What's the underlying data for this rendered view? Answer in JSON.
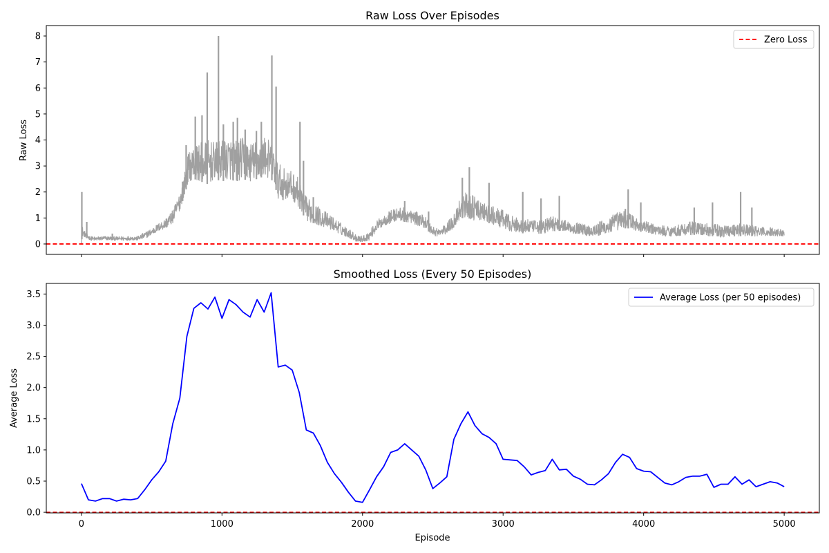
{
  "chart_data": [
    {
      "type": "line",
      "title": "Raw Loss Over Episodes",
      "xlabel": "",
      "ylabel": "Raw Loss",
      "xlim": [
        -250,
        5250
      ],
      "ylim": [
        -0.4,
        8.4
      ],
      "xticks": [
        0,
        1000,
        2000,
        3000,
        4000,
        5000
      ],
      "xtick_labels_visible": false,
      "yticks": [
        0,
        1,
        2,
        3,
        4,
        5,
        6,
        7,
        8
      ],
      "legend": {
        "position": "top-right",
        "entries": [
          {
            "label": "Zero Loss",
            "color": "#ff0000",
            "style": "dashed"
          }
        ]
      },
      "reference_lines": [
        {
          "label": "Zero Loss",
          "y": 0,
          "color": "#ff0000",
          "style": "dashed"
        }
      ],
      "series": [
        {
          "color": "#a0a0a0",
          "envelope": {
            "x": [
              0,
              5,
              10,
              30,
              60,
              100,
              150,
              200,
              250,
              300,
              350,
              400,
              450,
              500,
              550,
              600,
              650,
              700,
              740,
              760,
              800,
              850,
              900,
              950,
              1000,
              1050,
              1100,
              1150,
              1200,
              1250,
              1300,
              1350,
              1380,
              1400,
              1450,
              1500,
              1550,
              1600,
              1650,
              1700,
              1750,
              1800,
              1850,
              1900,
              1950,
              2000,
              2050,
              2100,
              2150,
              2200,
              2250,
              2300,
              2350,
              2400,
              2450,
              2500,
              2550,
              2600,
              2650,
              2700,
              2750,
              2800,
              2850,
              2900,
              2950,
              3000,
              3050,
              3100,
              3150,
              3200,
              3250,
              3300,
              3350,
              3400,
              3450,
              3500,
              3550,
              3600,
              3650,
              3700,
              3750,
              3800,
              3850,
              3900,
              3950,
              4000,
              4050,
              4100,
              4150,
              4200,
              4250,
              4300,
              4350,
              4400,
              4450,
              4500,
              4550,
              4600,
              4650,
              4700,
              4750,
              4800,
              4850,
              4900,
              4950,
              5000
            ],
            "low": [
              0.0,
              0.3,
              0.3,
              0.25,
              0.15,
              0.12,
              0.15,
              0.15,
              0.14,
              0.13,
              0.15,
              0.14,
              0.2,
              0.35,
              0.5,
              0.6,
              0.8,
              1.3,
              2.0,
              2.4,
              2.5,
              2.4,
              2.3,
              2.5,
              2.4,
              2.5,
              2.4,
              2.5,
              2.4,
              2.5,
              2.6,
              2.5,
              2.2,
              1.7,
              1.7,
              1.7,
              1.4,
              0.9,
              0.8,
              0.7,
              0.6,
              0.5,
              0.35,
              0.25,
              0.1,
              0.08,
              0.15,
              0.5,
              0.7,
              0.8,
              0.9,
              0.85,
              0.8,
              0.7,
              0.6,
              0.3,
              0.3,
              0.4,
              0.6,
              1.0,
              1.0,
              0.9,
              0.9,
              0.8,
              0.7,
              0.6,
              0.5,
              0.45,
              0.4,
              0.45,
              0.4,
              0.4,
              0.5,
              0.5,
              0.5,
              0.4,
              0.4,
              0.3,
              0.3,
              0.3,
              0.4,
              0.5,
              0.6,
              0.6,
              0.5,
              0.45,
              0.4,
              0.35,
              0.3,
              0.3,
              0.3,
              0.35,
              0.35,
              0.35,
              0.3,
              0.3,
              0.25,
              0.3,
              0.3,
              0.3,
              0.3,
              0.3,
              0.3,
              0.3,
              0.3,
              0.3
            ],
            "high": [
              0.6,
              0.8,
              0.6,
              0.45,
              0.3,
              0.28,
              0.3,
              0.3,
              0.28,
              0.3,
              0.3,
              0.3,
              0.45,
              0.6,
              0.8,
              1.0,
              1.3,
              2.0,
              2.9,
              3.5,
              3.8,
              3.9,
              4.0,
              3.9,
              4.0,
              4.1,
              4.0,
              4.1,
              3.9,
              4.0,
              4.2,
              3.9,
              3.5,
              3.1,
              2.9,
              2.8,
              2.5,
              1.8,
              1.6,
              1.4,
              1.2,
              1.0,
              0.8,
              0.6,
              0.4,
              0.3,
              0.5,
              0.9,
              1.1,
              1.3,
              1.4,
              1.4,
              1.3,
              1.2,
              1.1,
              0.7,
              0.6,
              0.8,
              1.2,
              1.9,
              2.0,
              1.8,
              1.6,
              1.5,
              1.4,
              1.3,
              1.1,
              1.0,
              1.0,
              0.9,
              0.9,
              1.0,
              1.1,
              1.0,
              0.9,
              0.85,
              0.8,
              0.75,
              0.8,
              0.9,
              1.0,
              1.2,
              1.3,
              1.2,
              1.0,
              0.9,
              0.8,
              0.75,
              0.7,
              0.7,
              0.75,
              0.8,
              0.9,
              0.8,
              0.8,
              0.8,
              0.7,
              0.75,
              0.8,
              0.8,
              0.75,
              0.7,
              0.65,
              0.65,
              0.6,
              0.55
            ]
          },
          "spikes": [
            [
              3,
              2.0
            ],
            [
              38,
              0.85
            ],
            [
              220,
              0.4
            ],
            [
              720,
              2.4
            ],
            [
              745,
              3.8
            ],
            [
              810,
              4.9
            ],
            [
              858,
              4.95
            ],
            [
              895,
              6.6
            ],
            [
              975,
              8.0
            ],
            [
              1010,
              4.6
            ],
            [
              1080,
              4.7
            ],
            [
              1110,
              4.85
            ],
            [
              1165,
              4.4
            ],
            [
              1245,
              4.35
            ],
            [
              1280,
              4.7
            ],
            [
              1355,
              7.25
            ],
            [
              1385,
              6.05
            ],
            [
              1555,
              4.7
            ],
            [
              1580,
              3.2
            ],
            [
              1650,
              1.8
            ],
            [
              2300,
              1.65
            ],
            [
              2470,
              1.25
            ],
            [
              2710,
              2.55
            ],
            [
              2760,
              2.95
            ],
            [
              2900,
              2.35
            ],
            [
              3140,
              2.0
            ],
            [
              3270,
              1.75
            ],
            [
              3400,
              1.85
            ],
            [
              3870,
              1.35
            ],
            [
              3890,
              2.1
            ],
            [
              3980,
              1.6
            ],
            [
              4360,
              1.4
            ],
            [
              4490,
              1.6
            ],
            [
              4690,
              2.0
            ],
            [
              4770,
              1.4
            ]
          ]
        }
      ]
    },
    {
      "type": "line",
      "title": "Smoothed Loss (Every 50 Episodes)",
      "xlabel": "Episode",
      "ylabel": "Average Loss",
      "xlim": [
        -250,
        5250
      ],
      "ylim": [
        -0.01,
        3.67
      ],
      "xticks": [
        0,
        1000,
        2000,
        3000,
        4000,
        5000
      ],
      "yticks": [
        0.0,
        0.5,
        1.0,
        1.5,
        2.0,
        2.5,
        3.0,
        3.5
      ],
      "ytick_labels": [
        "0.0",
        "0.5",
        "1.0",
        "1.5",
        "2.0",
        "2.5",
        "3.0",
        "3.5"
      ],
      "legend": {
        "position": "top-right",
        "entries": [
          {
            "label": "Average Loss (per 50 episodes)",
            "color": "#0000ff",
            "style": "solid"
          }
        ]
      },
      "reference_lines": [
        {
          "y": 0,
          "color": "#ff0000",
          "style": "dashed"
        }
      ],
      "series": [
        {
          "name": "Average Loss (per 50 episodes)",
          "color": "#0000ff",
          "x": [
            0,
            50,
            100,
            150,
            200,
            250,
            300,
            350,
            400,
            450,
            500,
            550,
            600,
            650,
            700,
            750,
            800,
            850,
            900,
            950,
            1000,
            1050,
            1100,
            1150,
            1200,
            1250,
            1300,
            1350,
            1400,
            1450,
            1500,
            1550,
            1600,
            1650,
            1700,
            1750,
            1800,
            1850,
            1900,
            1950,
            2000,
            2050,
            2100,
            2150,
            2200,
            2250,
            2300,
            2350,
            2400,
            2450,
            2500,
            2550,
            2600,
            2650,
            2700,
            2750,
            2800,
            2850,
            2900,
            2950,
            3000,
            3050,
            3100,
            3150,
            3200,
            3250,
            3300,
            3350,
            3400,
            3450,
            3500,
            3550,
            3600,
            3650,
            3700,
            3750,
            3800,
            3850,
            3900,
            3950,
            4000,
            4050,
            4100,
            4150,
            4200,
            4250,
            4300,
            4350,
            4400,
            4450,
            4500,
            4550,
            4600,
            4650,
            4700,
            4750,
            4800,
            4850,
            4900,
            4950,
            5000
          ],
          "values": [
            0.46,
            0.2,
            0.18,
            0.22,
            0.22,
            0.18,
            0.21,
            0.2,
            0.22,
            0.36,
            0.52,
            0.65,
            0.82,
            1.42,
            1.83,
            2.82,
            3.27,
            3.36,
            3.26,
            3.45,
            3.11,
            3.41,
            3.33,
            3.21,
            3.13,
            3.41,
            3.21,
            3.52,
            2.33,
            2.36,
            2.28,
            1.92,
            1.32,
            1.27,
            1.07,
            0.8,
            0.62,
            0.48,
            0.32,
            0.18,
            0.16,
            0.36,
            0.57,
            0.73,
            0.96,
            1.0,
            1.1,
            1.0,
            0.9,
            0.68,
            0.38,
            0.47,
            0.57,
            1.17,
            1.42,
            1.61,
            1.39,
            1.26,
            1.2,
            1.1,
            0.85,
            0.84,
            0.83,
            0.73,
            0.6,
            0.64,
            0.67,
            0.85,
            0.68,
            0.69,
            0.58,
            0.53,
            0.45,
            0.44,
            0.52,
            0.62,
            0.8,
            0.93,
            0.88,
            0.7,
            0.66,
            0.65,
            0.56,
            0.47,
            0.44,
            0.49,
            0.56,
            0.58,
            0.58,
            0.61,
            0.4,
            0.45,
            0.45,
            0.57,
            0.45,
            0.52,
            0.41,
            0.45,
            0.49,
            0.47,
            0.41
          ]
        }
      ]
    }
  ]
}
